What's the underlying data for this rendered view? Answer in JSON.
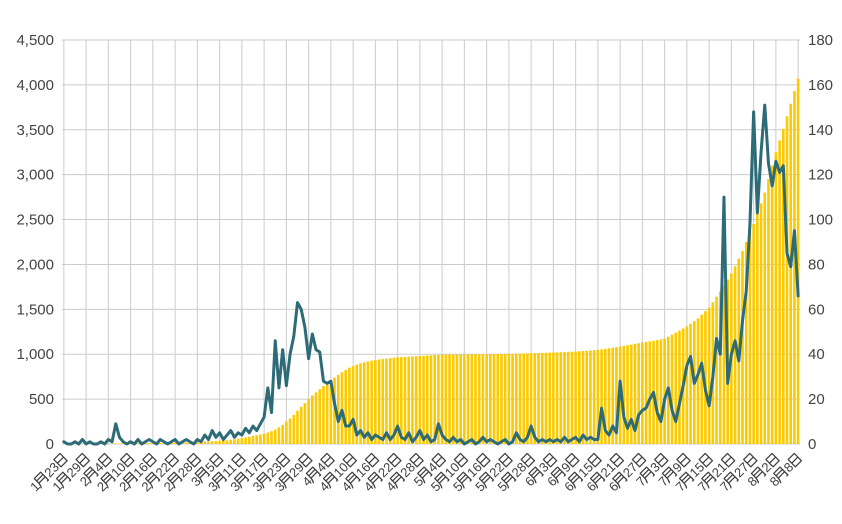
{
  "chart_data": {
    "type": "combo",
    "title": "",
    "legend": "none",
    "grid": true,
    "n_points": 199,
    "x_tick_interval_days": 6,
    "x_tick_labels": [
      "1月23日",
      "1月29日",
      "2月4日",
      "2月10日",
      "2月16日",
      "2月22日",
      "2月28日",
      "3月5日",
      "3月11日",
      "3月17日",
      "3月23日",
      "3月29日",
      "4月4日",
      "4月10日",
      "4月16日",
      "4月22日",
      "4月28日",
      "5月4日",
      "5月10日",
      "5月16日",
      "5月22日",
      "5月28日",
      "6月3日",
      "6月9日",
      "6月15日",
      "6月21日",
      "6月27日",
      "7月3日",
      "7月9日",
      "7月15日",
      "7月21日",
      "7月27日",
      "8月2日",
      "8月8日"
    ],
    "left_axis": {
      "min": 0,
      "max": 4500,
      "step": 500,
      "tick_labels": [
        "0",
        "500",
        "1,000",
        "1,500",
        "2,000",
        "2,500",
        "3,000",
        "3,500",
        "4,000",
        "4,500"
      ]
    },
    "right_axis": {
      "min": 0,
      "max": 180,
      "step": 20,
      "tick_labels": [
        "0",
        "20",
        "40",
        "60",
        "80",
        "100",
        "120",
        "140",
        "160",
        "180"
      ]
    },
    "series": [
      {
        "name": "cumulative-bars",
        "type": "bar",
        "axis": "left",
        "color": "#fbca00",
        "values": [
          0,
          0,
          0,
          1,
          1,
          1,
          2,
          2,
          2,
          3,
          3,
          3,
          4,
          4,
          5,
          6,
          7,
          8,
          8,
          9,
          9,
          10,
          10,
          11,
          12,
          13,
          13,
          14,
          14,
          15,
          15,
          16,
          17,
          18,
          19,
          21,
          23,
          25,
          28,
          30,
          32,
          34,
          35,
          38,
          42,
          47,
          52,
          58,
          65,
          72,
          80,
          90,
          98,
          106,
          115,
          128,
          142,
          160,
          185,
          215,
          250,
          285,
          325,
          370,
          415,
          455,
          500,
          540,
          575,
          610,
          645,
          680,
          710,
          740,
          770,
          800,
          825,
          850,
          870,
          885,
          900,
          910,
          920,
          928,
          935,
          941,
          946,
          951,
          956,
          961,
          965,
          968,
          971,
          973,
          976,
          978,
          980,
          983,
          986,
          988,
          990,
          993,
          995,
          996,
          996,
          997,
          997,
          998,
          998,
          999,
          999,
          999,
          1000,
          1000,
          1000,
          1001,
          1001,
          1002,
          1003,
          1003,
          1004,
          1005,
          1006,
          1007,
          1008,
          1009,
          1010,
          1012,
          1013,
          1015,
          1016,
          1018,
          1020,
          1021,
          1023,
          1024,
          1026,
          1028,
          1030,
          1033,
          1036,
          1039,
          1042,
          1045,
          1048,
          1054,
          1060,
          1066,
          1072,
          1078,
          1085,
          1092,
          1100,
          1107,
          1115,
          1122,
          1130,
          1137,
          1143,
          1150,
          1158,
          1166,
          1175,
          1196,
          1218,
          1240,
          1263,
          1286,
          1310,
          1340,
          1370,
          1400,
          1440,
          1480,
          1520,
          1580,
          1640,
          1700,
          1765,
          1832,
          1900,
          1980,
          2065,
          2150,
          2250,
          2350,
          2450,
          2565,
          2680,
          2800,
          2950,
          3100,
          3250,
          3380,
          3510,
          3650,
          3790,
          3930,
          4070
        ]
      },
      {
        "name": "daily-line",
        "type": "line",
        "axis": "right",
        "color": "#2d6b78",
        "values": [
          1,
          0,
          0,
          1,
          0,
          2,
          0,
          1,
          0,
          0,
          1,
          0,
          2,
          1,
          9,
          3,
          1,
          0,
          1,
          0,
          2,
          0,
          1,
          2,
          1,
          0,
          2,
          1,
          0,
          1,
          2,
          0,
          1,
          2,
          1,
          0,
          2,
          1,
          4,
          2,
          6,
          3,
          5,
          2,
          4,
          6,
          3,
          5,
          4,
          7,
          5,
          8,
          6,
          9,
          12,
          25,
          14,
          46,
          25,
          42,
          26,
          40,
          48,
          63,
          60,
          52,
          38,
          49,
          42,
          41,
          28,
          27,
          28,
          18,
          10,
          15,
          8,
          8,
          11,
          4,
          6,
          3,
          5,
          2,
          4,
          3,
          2,
          5,
          2,
          4,
          8,
          3,
          2,
          5,
          1,
          3,
          6,
          2,
          4,
          1,
          2,
          9,
          4,
          2,
          1,
          3,
          1,
          2,
          0,
          1,
          2,
          0,
          1,
          3,
          1,
          2,
          1,
          0,
          1,
          2,
          0,
          1,
          5,
          2,
          1,
          3,
          8,
          3,
          1,
          2,
          1,
          2,
          1,
          2,
          1,
          3,
          1,
          2,
          3,
          1,
          4,
          2,
          3,
          2,
          2,
          16,
          6,
          4,
          8,
          5,
          28,
          12,
          7,
          11,
          6,
          13,
          15,
          16,
          20,
          23,
          14,
          10,
          20,
          25,
          15,
          10,
          18,
          26,
          35,
          39,
          27,
          31,
          36,
          24,
          17,
          30,
          47,
          40,
          110,
          27,
          40,
          46,
          37,
          55,
          68,
          98,
          148,
          103,
          130,
          151,
          125,
          115,
          126,
          121,
          124,
          85,
          79,
          95,
          66
        ]
      }
    ]
  },
  "colors": {
    "background": "#ffffff",
    "gridline": "#cccccc",
    "bar_fill": "#fbca00",
    "line_stroke": "#2d6b78",
    "axis_label": "#444444",
    "x_label": "#3f3f3f"
  }
}
